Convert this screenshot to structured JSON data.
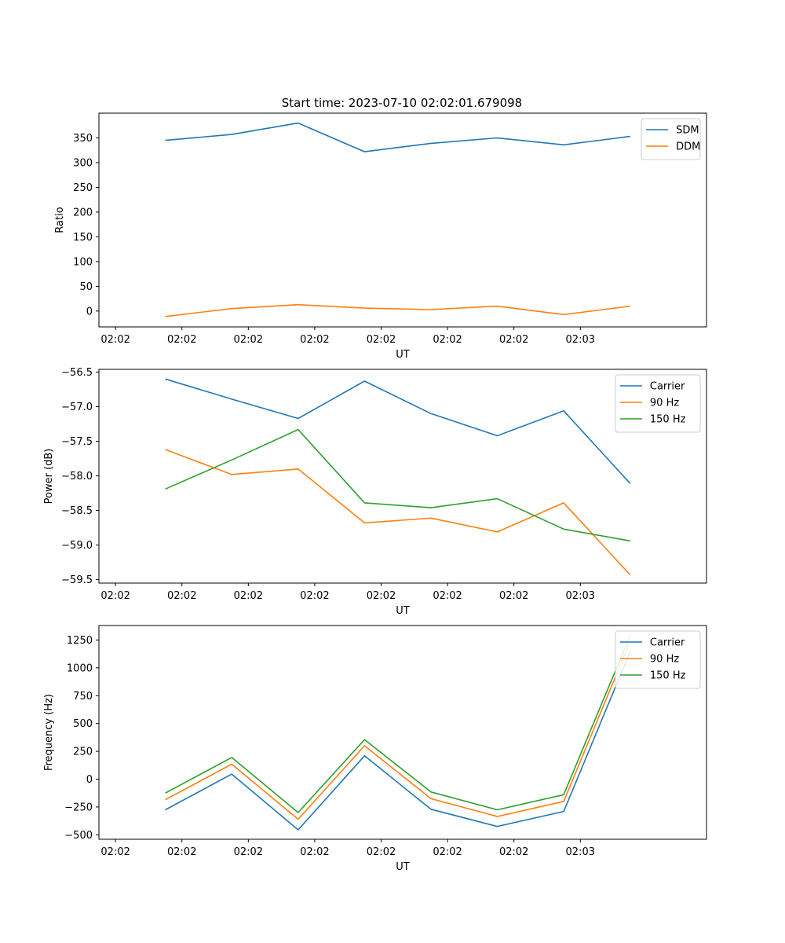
{
  "figure": {
    "title": "Start time: 2023-07-10 02:02:01.679098"
  },
  "colors": {
    "c0": "#1f77b4",
    "c1": "#ff7f0e",
    "c2": "#2ca02c"
  },
  "chart_data": [
    {
      "type": "line",
      "title": "Start time: 2023-07-10 02:02:01.679098",
      "xlabel": "UT",
      "ylabel": "Ratio",
      "x_ticks": [
        "02:02",
        "02:02",
        "02:02",
        "02:02",
        "02:02",
        "02:02",
        "02:02",
        "02:03"
      ],
      "x": [
        1,
        2,
        3,
        4,
        5,
        6,
        7,
        8
      ],
      "xlim": [
        0,
        9.15
      ],
      "ylim": [
        -32,
        400
      ],
      "yticks": [
        0,
        50,
        100,
        150,
        200,
        250,
        300,
        350
      ],
      "legend": "top-right",
      "series": [
        {
          "name": "SDM",
          "color": "#1f77b4",
          "values": [
            345,
            357,
            380,
            322,
            339,
            350,
            336,
            353
          ]
        },
        {
          "name": "DDM",
          "color": "#ff7f0e",
          "values": [
            -11,
            5,
            13,
            6,
            3,
            10,
            -7,
            10
          ]
        }
      ]
    },
    {
      "type": "line",
      "xlabel": "UT",
      "ylabel": "Power (dB)",
      "x_ticks": [
        "02:02",
        "02:02",
        "02:02",
        "02:02",
        "02:02",
        "02:02",
        "02:02",
        "02:03"
      ],
      "x": [
        1,
        2,
        3,
        4,
        5,
        6,
        7,
        8
      ],
      "xlim": [
        0,
        9.15
      ],
      "ylim": [
        -59.55,
        -56.46
      ],
      "yticks": [
        -59.5,
        -59.0,
        -58.5,
        -58.0,
        -57.5,
        -57.0,
        -56.5
      ],
      "ytick_labels": [
        "−59.5",
        "−59.0",
        "−58.5",
        "−58.0",
        "−57.5",
        "−57.0",
        "−56.5"
      ],
      "legend": "top-right",
      "series": [
        {
          "name": "Carrier",
          "color": "#1f77b4",
          "values": [
            -56.6,
            -56.89,
            -57.17,
            -56.63,
            -57.1,
            -57.42,
            -57.06,
            -58.11
          ]
        },
        {
          "name": "90 Hz",
          "color": "#ff7f0e",
          "values": [
            -57.62,
            -57.98,
            -57.9,
            -58.68,
            -58.61,
            -58.81,
            -58.39,
            -59.43
          ]
        },
        {
          "name": "150 Hz",
          "color": "#2ca02c",
          "values": [
            -58.19,
            -57.77,
            -57.33,
            -58.39,
            -58.46,
            -58.33,
            -58.77,
            -58.94
          ]
        }
      ]
    },
    {
      "type": "line",
      "xlabel": "UT",
      "ylabel": "Frequency (Hz)",
      "x_ticks": [
        "02:02",
        "02:02",
        "02:02",
        "02:02",
        "02:02",
        "02:02",
        "02:02",
        "02:03"
      ],
      "x": [
        1,
        2,
        3,
        4,
        5,
        6,
        7,
        8
      ],
      "xlim": [
        0,
        9.15
      ],
      "ylim": [
        -540,
        1380
      ],
      "yticks": [
        -500,
        -250,
        0,
        250,
        500,
        750,
        1000,
        1250
      ],
      "ytick_labels": [
        "−500",
        "−250",
        "0",
        "250",
        "500",
        "750",
        "1000",
        "1250"
      ],
      "legend": "top-right",
      "series": [
        {
          "name": "Carrier",
          "color": "#1f77b4",
          "values": [
            -275,
            45,
            -455,
            210,
            -270,
            -425,
            -290,
            1145
          ]
        },
        {
          "name": "90 Hz",
          "color": "#ff7f0e",
          "values": [
            -185,
            135,
            -360,
            300,
            -175,
            -335,
            -200,
            1235
          ]
        },
        {
          "name": "150 Hz",
          "color": "#2ca02c",
          "values": [
            -125,
            195,
            -300,
            355,
            -115,
            -275,
            -140,
            1290
          ]
        }
      ]
    }
  ]
}
